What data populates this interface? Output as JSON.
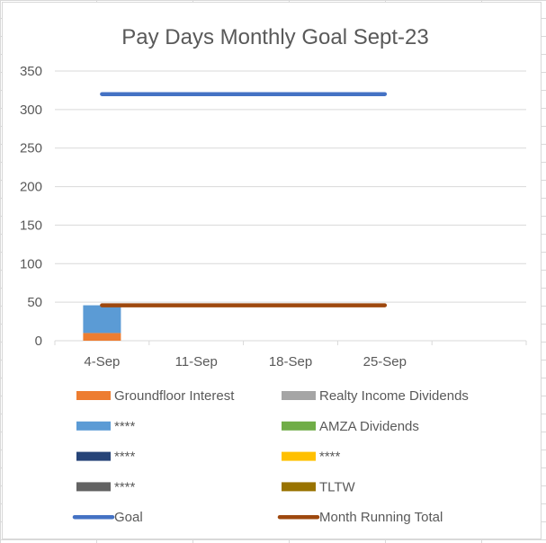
{
  "chart_data": {
    "type": "bar",
    "title": "Pay Days Monthly Goal Sept-23",
    "categories": [
      "4-Sep",
      "11-Sep",
      "18-Sep",
      "25-Sep",
      ""
    ],
    "ylim": [
      0,
      350
    ],
    "yticks": [
      0,
      50,
      100,
      150,
      200,
      250,
      300,
      350
    ],
    "grid": true,
    "legend_position": "bottom",
    "stacked_series": [
      {
        "name": "Groundfloor Interest",
        "color": "#ED7D31",
        "values": [
          10,
          0,
          0,
          0,
          0
        ]
      },
      {
        "name": "Realty Income Dividends",
        "color": "#A5A5A5",
        "values": [
          0,
          0,
          0,
          0,
          0
        ]
      },
      {
        "name": "****",
        "color": "#5B9BD5",
        "values": [
          36,
          0,
          0,
          0,
          0
        ]
      },
      {
        "name": "AMZA Dividends",
        "color": "#70AD47",
        "values": [
          0,
          0,
          0,
          0,
          0
        ]
      },
      {
        "name": "****",
        "color": "#264478",
        "values": [
          0,
          0,
          0,
          0,
          0
        ]
      },
      {
        "name": "****",
        "color": "#FFC000",
        "values": [
          0,
          0,
          0,
          0,
          0
        ]
      },
      {
        "name": "****",
        "color": "#636363",
        "values": [
          0,
          0,
          0,
          0,
          0
        ]
      },
      {
        "name": "TLTW",
        "color": "#997300",
        "values": [
          0,
          0,
          0,
          0,
          0
        ]
      }
    ],
    "line_series": [
      {
        "name": "Goal",
        "color": "#4472C4",
        "values": [
          320,
          320,
          320,
          320
        ]
      },
      {
        "name": "Month Running Total",
        "color": "#9E480E",
        "values": [
          46,
          46,
          46,
          46
        ]
      }
    ],
    "legend_order": [
      {
        "name": "Groundfloor Interest",
        "color": "#ED7D31",
        "kind": "bar"
      },
      {
        "name": "Realty Income Dividends",
        "color": "#A5A5A5",
        "kind": "bar"
      },
      {
        "name": "****",
        "color": "#5B9BD5",
        "kind": "bar"
      },
      {
        "name": "AMZA Dividends",
        "color": "#70AD47",
        "kind": "bar"
      },
      {
        "name": "****",
        "color": "#264478",
        "kind": "bar"
      },
      {
        "name": "****",
        "color": "#FFC000",
        "kind": "bar"
      },
      {
        "name": "****",
        "color": "#636363",
        "kind": "bar"
      },
      {
        "name": "TLTW",
        "color": "#997300",
        "kind": "bar"
      },
      {
        "name": "Goal",
        "color": "#4472C4",
        "kind": "line"
      },
      {
        "name": "Month Running Total",
        "color": "#9E480E",
        "kind": "line"
      }
    ]
  }
}
